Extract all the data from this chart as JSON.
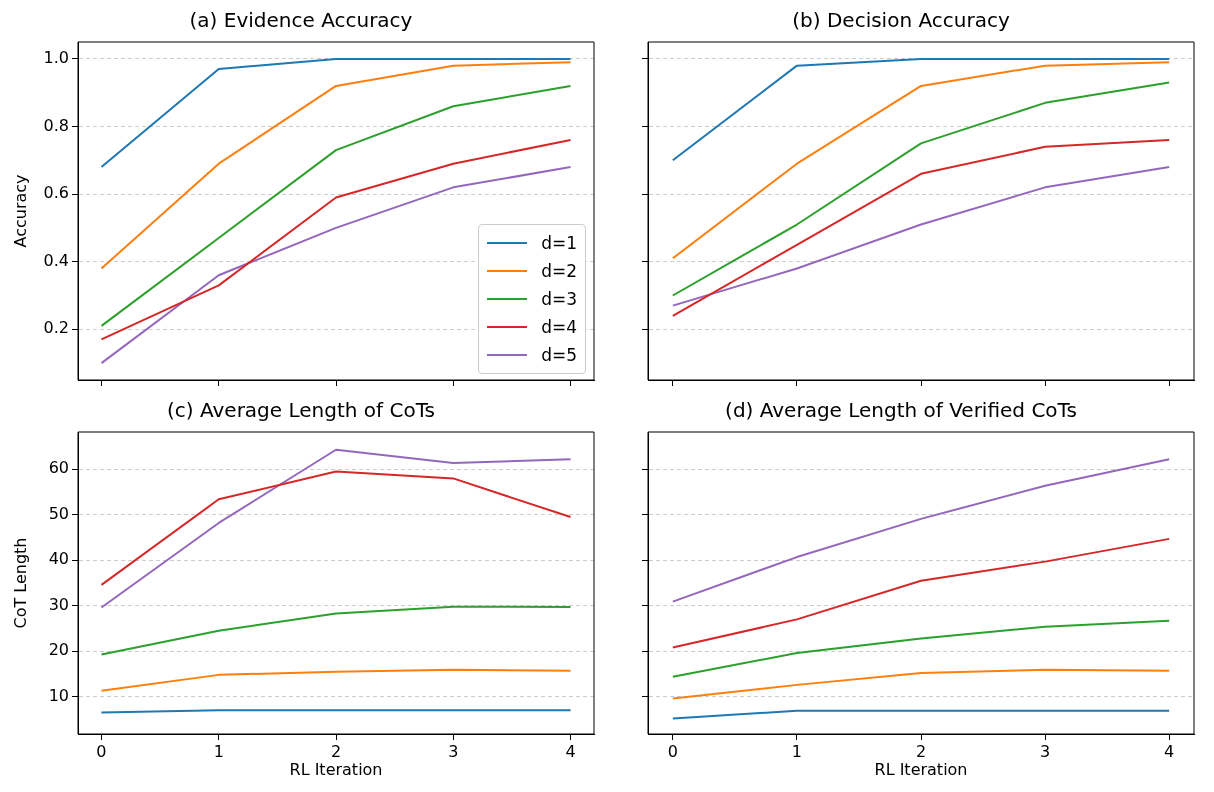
{
  "chart_data": [
    {
      "type": "line",
      "title": "(a) Evidence Accuracy",
      "ylabel": "Accuracy",
      "x": [
        0,
        1,
        2,
        3,
        4
      ],
      "xlim": [
        -0.2,
        4.2
      ],
      "xticks": [
        0,
        1,
        2,
        3,
        4
      ],
      "ylim": [
        0.05,
        1.05
      ],
      "yticks": [
        0.2,
        0.4,
        0.6,
        0.8,
        {
          "value": 1,
          "label": "1.0"
        }
      ],
      "grid": "y",
      "legend": "bottom right",
      "tick_labels": "y",
      "line_style": "solid",
      "marker": "none",
      "series": [
        {
          "name": "d=1",
          "color": "#1f77b4",
          "values": [
            0.68,
            0.97,
            1.0,
            1.0,
            1.0
          ]
        },
        {
          "name": "d=2",
          "color": "#ff7f0e",
          "values": [
            0.38,
            0.69,
            0.92,
            0.98,
            0.99
          ]
        },
        {
          "name": "d=3",
          "color": "#2ca02c",
          "values": [
            0.21,
            0.47,
            0.73,
            0.86,
            0.92
          ]
        },
        {
          "name": "d=4",
          "color": "#d62728",
          "values": [
            0.17,
            0.33,
            0.59,
            0.69,
            0.76
          ]
        },
        {
          "name": "d=5",
          "color": "#9467bd",
          "values": [
            0.1,
            0.36,
            0.5,
            0.62,
            0.68
          ]
        }
      ]
    },
    {
      "type": "line",
      "title": "(b) Decision Accuracy",
      "x": [
        0,
        1,
        2,
        3,
        4
      ],
      "xlim": [
        -0.2,
        4.2
      ],
      "xticks": [
        0,
        1,
        2,
        3,
        4
      ],
      "ylim": [
        0.05,
        1.05
      ],
      "yticks": [
        0.2,
        0.4,
        0.6,
        0.8,
        1
      ],
      "grid": "y",
      "tick_labels": false,
      "line_style": "solid",
      "marker": "none",
      "series": [
        {
          "color": "#1f77b4",
          "values": [
            0.7,
            0.98,
            1.0,
            1.0,
            1.0
          ]
        },
        {
          "color": "#ff7f0e",
          "values": [
            0.41,
            0.69,
            0.92,
            0.98,
            0.99
          ]
        },
        {
          "color": "#2ca02c",
          "values": [
            0.3,
            0.51,
            0.75,
            0.87,
            0.93
          ]
        },
        {
          "color": "#d62728",
          "values": [
            0.24,
            0.45,
            0.66,
            0.74,
            0.76
          ]
        },
        {
          "color": "#9467bd",
          "values": [
            0.27,
            0.38,
            0.51,
            0.62,
            0.68
          ]
        }
      ]
    },
    {
      "type": "line",
      "title": "(c) Average Length of CoTs",
      "xlabel": "RL Iteration",
      "ylabel": "CoT Length",
      "x": [
        0,
        1,
        2,
        3,
        4
      ],
      "xlim": [
        -0.2,
        4.2
      ],
      "xticks": [
        0,
        1,
        2,
        3,
        4
      ],
      "ylim": [
        1.8,
        68.2
      ],
      "yticks": [
        10,
        20,
        30,
        40,
        50,
        60
      ],
      "grid": "y",
      "line_style": "solid",
      "marker": "none",
      "series": [
        {
          "color": "#1f77b4",
          "values": [
            6.5,
            7.0,
            7.0,
            7.0,
            7.0
          ]
        },
        {
          "color": "#ff7f0e",
          "values": [
            11.3,
            14.8,
            15.5,
            15.9,
            15.7
          ]
        },
        {
          "color": "#2ca02c",
          "values": [
            19.3,
            24.5,
            28.3,
            29.8,
            29.7
          ]
        },
        {
          "color": "#d62728",
          "values": [
            34.6,
            53.4,
            59.5,
            58.0,
            49.5
          ]
        },
        {
          "color": "#9467bd",
          "values": [
            29.6,
            48.2,
            64.3,
            61.4,
            62.2
          ]
        }
      ]
    },
    {
      "type": "line",
      "title": "(d) Average Length of Verified CoTs",
      "xlabel": "RL Iteration",
      "x": [
        0,
        1,
        2,
        3,
        4
      ],
      "xlim": [
        -0.2,
        4.2
      ],
      "xticks": [
        0,
        1,
        2,
        3,
        4
      ],
      "ylim": [
        1.8,
        68.2
      ],
      "yticks": [
        10,
        20,
        30,
        40,
        50,
        60
      ],
      "grid": "y",
      "tick_labels": "x",
      "line_style": "solid",
      "marker": "none",
      "series": [
        {
          "color": "#1f77b4",
          "values": [
            5.2,
            6.9,
            6.9,
            6.9,
            6.9
          ]
        },
        {
          "color": "#ff7f0e",
          "values": [
            9.6,
            12.6,
            15.2,
            15.9,
            15.7
          ]
        },
        {
          "color": "#2ca02c",
          "values": [
            14.4,
            19.6,
            22.8,
            25.4,
            26.7
          ]
        },
        {
          "color": "#d62728",
          "values": [
            20.8,
            27.0,
            35.5,
            39.7,
            44.7
          ]
        },
        {
          "color": "#9467bd",
          "values": [
            30.9,
            40.7,
            49.1,
            56.4,
            62.2
          ]
        }
      ]
    }
  ]
}
